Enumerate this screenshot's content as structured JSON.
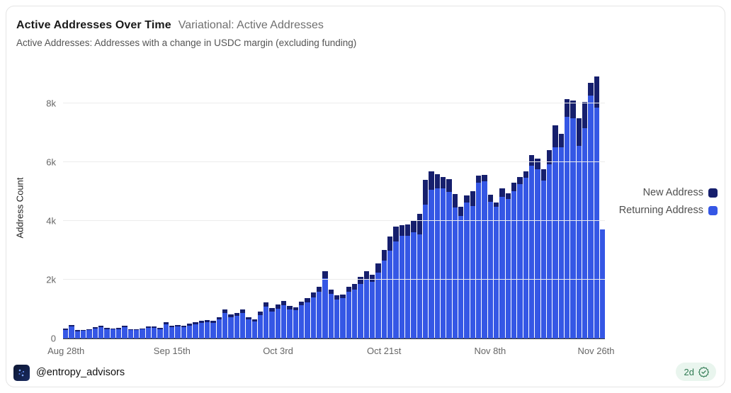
{
  "header": {
    "title": "Active Addresses Over Time",
    "subtitle": "Variational: Active Addresses",
    "description": "Active Addresses: Addresses with a change in USDC margin (excluding funding)"
  },
  "footer": {
    "handle": "@entropy_advisors",
    "badge_age": "2d",
    "badge_icon": "verified-check",
    "badge_color": "#2f7a52",
    "badge_bg": "#e9f5ee",
    "logo_icon": "entropy-dots-logo"
  },
  "colors": {
    "new_address": "#161f6d",
    "returning_address": "#3557e5",
    "gridline": "#ececec",
    "axis_text": "#666666"
  },
  "chart_data": {
    "type": "bar",
    "stacked": true,
    "title": "Active Addresses Over Time",
    "xlabel": "",
    "ylabel": "Address Count",
    "ylim": [
      0,
      9200
    ],
    "grid": true,
    "legend_position": "right",
    "y_ticks": [
      {
        "label": "0",
        "value": 0
      },
      {
        "label": "2k",
        "value": 2000
      },
      {
        "label": "4k",
        "value": 4000
      },
      {
        "label": "6k",
        "value": 6000
      },
      {
        "label": "8k",
        "value": 8000
      }
    ],
    "x_ticks": [
      {
        "label": "Aug 28th",
        "index": 0
      },
      {
        "label": "Sep 15th",
        "index": 18
      },
      {
        "label": "Oct 3rd",
        "index": 36
      },
      {
        "label": "Oct 21st",
        "index": 54
      },
      {
        "label": "Nov 8th",
        "index": 72
      },
      {
        "label": "Nov 26th",
        "index": 90
      }
    ],
    "x": [
      "Aug 28",
      "Aug 29",
      "Aug 30",
      "Aug 31",
      "Sep 1",
      "Sep 2",
      "Sep 3",
      "Sep 4",
      "Sep 5",
      "Sep 6",
      "Sep 7",
      "Sep 8",
      "Sep 9",
      "Sep 10",
      "Sep 11",
      "Sep 12",
      "Sep 13",
      "Sep 14",
      "Sep 15",
      "Sep 16",
      "Sep 17",
      "Sep 18",
      "Sep 19",
      "Sep 20",
      "Sep 21",
      "Sep 22",
      "Sep 23",
      "Sep 24",
      "Sep 25",
      "Sep 26",
      "Sep 27",
      "Sep 28",
      "Sep 29",
      "Sep 30",
      "Oct 1",
      "Oct 2",
      "Oct 3",
      "Oct 4",
      "Oct 5",
      "Oct 6",
      "Oct 7",
      "Oct 8",
      "Oct 9",
      "Oct 10",
      "Oct 11",
      "Oct 12",
      "Oct 13",
      "Oct 14",
      "Oct 15",
      "Oct 16",
      "Oct 17",
      "Oct 18",
      "Oct 19",
      "Oct 20",
      "Oct 21",
      "Oct 22",
      "Oct 23",
      "Oct 24",
      "Oct 25",
      "Oct 26",
      "Oct 27",
      "Oct 28",
      "Oct 29",
      "Oct 30",
      "Oct 31",
      "Nov 1",
      "Nov 2",
      "Nov 3",
      "Nov 4",
      "Nov 5",
      "Nov 6",
      "Nov 7",
      "Nov 8",
      "Nov 9",
      "Nov 10",
      "Nov 11",
      "Nov 12",
      "Nov 13",
      "Nov 14",
      "Nov 15",
      "Nov 16",
      "Nov 17",
      "Nov 18",
      "Nov 19",
      "Nov 20",
      "Nov 21",
      "Nov 22",
      "Nov 23",
      "Nov 24",
      "Nov 25",
      "Nov 26",
      "Nov 27"
    ],
    "series": [
      {
        "name": "New Address",
        "color": "#161f6d",
        "values": [
          40,
          55,
          30,
          30,
          35,
          45,
          50,
          40,
          40,
          40,
          50,
          35,
          35,
          40,
          45,
          45,
          40,
          65,
          50,
          55,
          50,
          55,
          65,
          70,
          75,
          65,
          85,
          120,
          95,
          95,
          115,
          80,
          70,
          105,
          150,
          115,
          130,
          145,
          115,
          110,
          135,
          155,
          180,
          185,
          240,
          145,
          135,
          135,
          180,
          195,
          225,
          255,
          230,
          300,
          350,
          480,
          510,
          360,
          390,
          380,
          710,
          830,
          630,
          470,
          390,
          420,
          470,
          310,
          240,
          500,
          240,
          230,
          240,
          160,
          280,
          190,
          280,
          230,
          230,
          350,
          360,
          390,
          470,
          740,
          450,
          600,
          600,
          950,
          900,
          450,
          1050,
          0
        ]
      },
      {
        "name": "Returning Address",
        "color": "#3557e5",
        "values": [
          290,
          400,
          250,
          255,
          285,
          340,
          390,
          320,
          305,
          320,
          390,
          285,
          285,
          305,
          370,
          355,
          320,
          490,
          390,
          405,
          375,
          440,
          490,
          525,
          560,
          530,
          645,
          870,
          715,
          775,
          875,
          650,
          580,
          805,
          1075,
          910,
          1015,
          1135,
          990,
          955,
          1125,
          1225,
          1395,
          1585,
          2040,
          1510,
          1325,
          1365,
          1590,
          1655,
          1860,
          2025,
          1935,
          2250,
          2650,
          2980,
          3300,
          3500,
          3500,
          3620,
          3530,
          4560,
          5060,
          5110,
          5110,
          4990,
          4450,
          4160,
          4630,
          4500,
          5290,
          5340,
          4660,
          4470,
          4820,
          4750,
          5010,
          5250,
          5460,
          5880,
          5760,
          5370,
          5930,
          6510,
          6500,
          7550,
          7500,
          6550,
          7150,
          8250,
          7850,
          3700
        ]
      }
    ]
  }
}
